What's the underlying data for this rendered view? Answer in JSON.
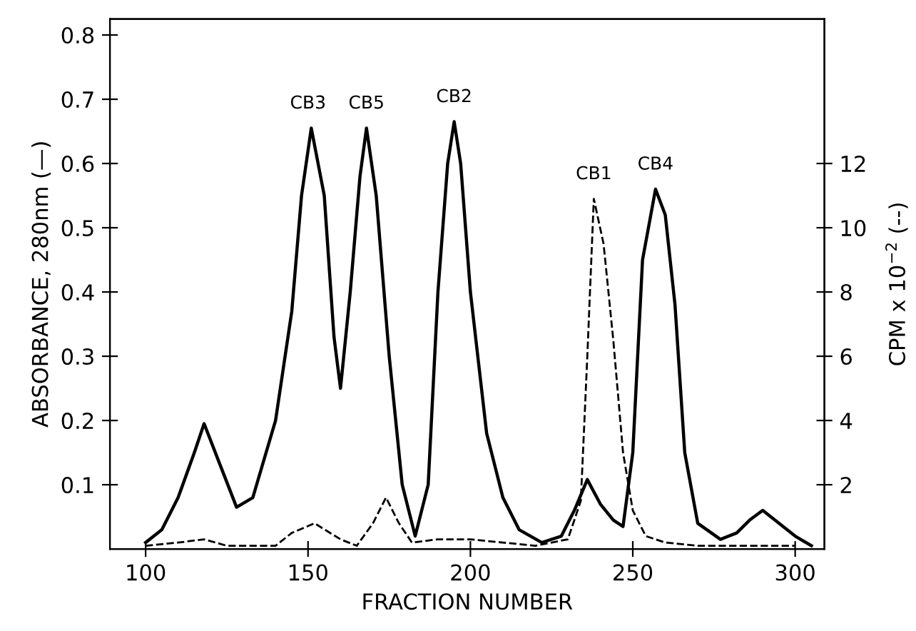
{
  "chart_data": {
    "type": "line",
    "xlabel": "FRACTION NUMBER",
    "ylabel": "ABSORBANCE, 280nm (—)",
    "y2label": "CPM x 10$^{−2}$ (--)",
    "xlim": [
      89,
      309
    ],
    "xticks": [
      100,
      150,
      200,
      250,
      300
    ],
    "ylim": [
      0,
      0.825
    ],
    "yticks": [
      0.1,
      0.2,
      0.3,
      0.4,
      0.5,
      0.6,
      0.7,
      0.8
    ],
    "y2lim": [
      0,
      16.5
    ],
    "y2ticks": [
      2,
      4,
      6,
      8,
      10,
      12
    ],
    "marker": "none",
    "series": [
      {
        "color": "#000000",
        "line_style": "solid",
        "x": [
          100,
          105,
          110,
          115,
          118,
          123,
          128,
          133,
          140,
          145,
          148,
          151,
          155,
          158,
          160,
          163,
          166,
          168,
          171,
          175,
          179,
          183,
          187,
          190,
          193,
          195,
          197,
          200,
          205,
          210,
          215,
          222,
          228,
          232,
          236,
          240,
          244,
          247,
          250,
          253,
          257,
          260,
          263,
          266,
          270,
          277,
          282,
          286,
          290,
          295,
          300,
          305
        ],
        "values": [
          0.01,
          0.03,
          0.08,
          0.15,
          0.195,
          0.13,
          0.065,
          0.08,
          0.2,
          0.37,
          0.55,
          0.655,
          0.55,
          0.33,
          0.25,
          0.4,
          0.58,
          0.655,
          0.55,
          0.3,
          0.1,
          0.02,
          0.1,
          0.4,
          0.6,
          0.665,
          0.6,
          0.4,
          0.18,
          0.08,
          0.03,
          0.01,
          0.02,
          0.06,
          0.108,
          0.07,
          0.045,
          0.035,
          0.15,
          0.45,
          0.56,
          0.52,
          0.38,
          0.15,
          0.04,
          0.015,
          0.025,
          0.045,
          0.06,
          0.04,
          0.02,
          0.005
        ]
      },
      {
        "color": "#000000",
        "line_style": "dashed",
        "axis": "y2",
        "x": [
          100,
          110,
          118,
          125,
          140,
          145,
          152,
          160,
          165,
          170,
          174,
          178,
          182,
          190,
          200,
          210,
          220,
          230,
          234,
          236,
          238,
          241,
          244,
          247,
          250,
          254,
          260,
          270,
          300
        ],
        "values": [
          0.1,
          0.2,
          0.3,
          0.1,
          0.1,
          0.5,
          0.8,
          0.3,
          0.1,
          0.8,
          1.6,
          0.8,
          0.2,
          0.3,
          0.3,
          0.2,
          0.1,
          0.3,
          1.5,
          6,
          10.9,
          9.5,
          6.5,
          3,
          1.2,
          0.4,
          0.2,
          0.1,
          0.1
        ]
      }
    ],
    "annotations": [
      {
        "text": "CB3",
        "x": 150,
        "y": 0.655
      },
      {
        "text": "CB5",
        "x": 168,
        "y": 0.655
      },
      {
        "text": "CB2",
        "x": 195,
        "y": 0.665
      },
      {
        "text": "CB1",
        "x": 238,
        "y": 0.545
      },
      {
        "text": "CB4",
        "x": 257,
        "y": 0.56
      }
    ]
  }
}
